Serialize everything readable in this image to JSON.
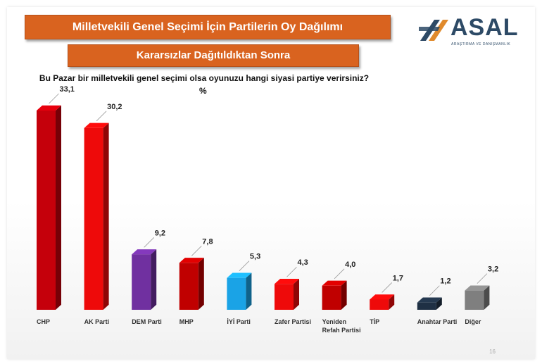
{
  "header": {
    "title": "Milletvekili Genel Seçimi İçin Partilerin Oy Dağılımı",
    "subtitle": "Kararsızlar Dağıtıldıktan Sonra"
  },
  "logo": {
    "name": "ASAL",
    "tagline": "ARAŞTIRMA VE DANIŞMANLIK",
    "colors": [
      "#2d4a66",
      "#e08a2c"
    ]
  },
  "question": "Bu Pazar bir milletvekili genel seçimi olsa oyunuzu hangi siyasi partiye verirsiniz?",
  "unit": "%",
  "page_number": "16",
  "chart_data": {
    "type": "bar",
    "title": "",
    "xlabel": "",
    "ylabel": "",
    "ylim": [
      0,
      35
    ],
    "grid": false,
    "legend": "none",
    "categories": [
      "CHP",
      "AK Parti",
      "DEM Parti",
      "MHP",
      "İYİ Parti",
      "Zafer Partisi",
      "Yeniden Refah Partisi",
      "TİP",
      "Anahtar Parti",
      "Diğer"
    ],
    "values": [
      33.1,
      30.2,
      9.2,
      7.8,
      5.3,
      4.3,
      4.0,
      1.7,
      1.2,
      3.2
    ],
    "value_labels": [
      "33,1",
      "30,2",
      "9,2",
      "7,8",
      "5,3",
      "4,3",
      "4,0",
      "1,7",
      "1,2",
      "3,2"
    ],
    "colors": [
      "#c5000b",
      "#ee0a0a",
      "#7030a0",
      "#c00000",
      "#1aa3e6",
      "#ee0a0a",
      "#c00000",
      "#ee0a0a",
      "#1f3044",
      "#7f7f7f"
    ]
  }
}
